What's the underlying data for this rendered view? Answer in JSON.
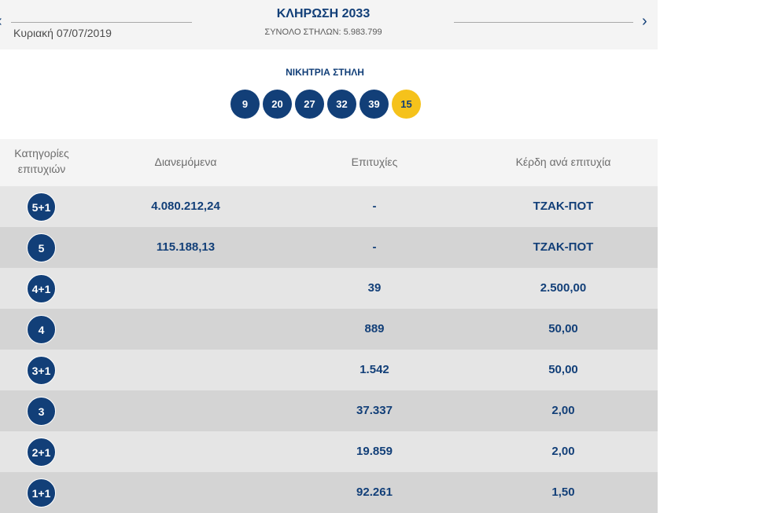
{
  "header": {
    "prev_icon": "‹",
    "next_icon": "›",
    "date": "Κυριακή 07/07/2019",
    "draw_title": "ΚΛΗΡΩΣΗ 2033",
    "total_columns": "ΣΥΝΟΛΟ ΣΤΗΛΩΝ: 5.983.799"
  },
  "winning": {
    "title": "ΝΙΚΗΤΡΙΑ ΣΤΗΛΗ",
    "numbers": [
      "9",
      "20",
      "27",
      "32",
      "39"
    ],
    "bonus": "15"
  },
  "table": {
    "headers": {
      "category_line1": "Κατηγορίες",
      "category_line2": "επιτυχιών",
      "distributed": "Διανεμόμενα",
      "winners": "Επιτυχίες",
      "prize": "Κέρδη ανά επιτυχία"
    },
    "rows": [
      {
        "category": "5+1",
        "distributed": "4.080.212,24",
        "winners": "-",
        "prize": "ΤΖΑΚ-ΠΟΤ"
      },
      {
        "category": "5",
        "distributed": "115.188,13",
        "winners": "-",
        "prize": "ΤΖΑΚ-ΠΟΤ"
      },
      {
        "category": "4+1",
        "distributed": "",
        "winners": "39",
        "prize": "2.500,00"
      },
      {
        "category": "4",
        "distributed": "",
        "winners": "889",
        "prize": "50,00"
      },
      {
        "category": "3+1",
        "distributed": "",
        "winners": "1.542",
        "prize": "50,00"
      },
      {
        "category": "3",
        "distributed": "",
        "winners": "37.337",
        "prize": "2,00"
      },
      {
        "category": "2+1",
        "distributed": "",
        "winners": "19.859",
        "prize": "2,00"
      },
      {
        "category": "1+1",
        "distributed": "",
        "winners": "92.261",
        "prize": "1,50"
      }
    ]
  },
  "colors": {
    "primary": "#123f78",
    "bonus": "#f5c21b",
    "row_light": "#e5e5e5",
    "row_dark": "#d4d4d4",
    "header_bg": "#f4f4f4"
  }
}
